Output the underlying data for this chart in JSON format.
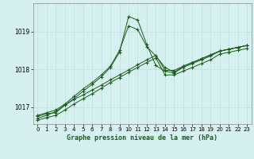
{
  "title": "Graphe pression niveau de la mer (hPa)",
  "background_color": "#d6f0f0",
  "grid_color": "#b8e0e0",
  "line_color": "#1a5c1a",
  "xlim": [
    -0.5,
    23.5
  ],
  "ylim": [
    1016.55,
    1019.75
  ],
  "yticks": [
    1017,
    1018,
    1019
  ],
  "xticks": [
    0,
    1,
    2,
    3,
    4,
    5,
    6,
    7,
    8,
    9,
    10,
    11,
    12,
    13,
    14,
    15,
    16,
    17,
    18,
    19,
    20,
    21,
    22,
    23
  ],
  "series1_x": [
    0,
    1,
    2,
    3,
    4,
    5,
    6,
    7,
    8,
    9,
    10,
    11,
    12,
    13,
    14,
    15,
    16,
    17,
    18,
    19,
    20,
    21,
    22,
    23
  ],
  "series1_y": [
    1016.75,
    1016.82,
    1016.85,
    1017.05,
    1017.2,
    1017.32,
    1017.45,
    1017.58,
    1017.72,
    1017.85,
    1017.98,
    1018.12,
    1018.25,
    1018.37,
    1017.97,
    1017.97,
    1018.08,
    1018.18,
    1018.28,
    1018.38,
    1018.48,
    1018.53,
    1018.58,
    1018.63
  ],
  "series2_x": [
    0,
    1,
    2,
    3,
    4,
    5,
    6,
    7,
    8,
    9,
    10,
    11,
    12,
    13,
    14,
    15,
    16,
    17,
    18,
    19,
    20,
    21,
    22,
    23
  ],
  "series2_y": [
    1016.78,
    1016.85,
    1016.92,
    1017.08,
    1017.28,
    1017.48,
    1017.65,
    1017.85,
    1018.08,
    1018.5,
    1019.15,
    1019.05,
    1018.6,
    1018.35,
    1018.05,
    1017.92,
    1018.08,
    1018.18,
    1018.28,
    1018.38,
    1018.48,
    1018.53,
    1018.58,
    1018.63
  ],
  "series3_x": [
    0,
    1,
    2,
    3,
    4,
    5,
    6,
    7,
    8,
    9,
    10,
    11,
    12,
    13,
    14,
    15,
    16,
    17,
    18,
    19,
    20,
    21,
    22,
    23
  ],
  "series3_y": [
    1016.7,
    1016.78,
    1016.88,
    1017.05,
    1017.22,
    1017.42,
    1017.6,
    1017.8,
    1018.05,
    1018.45,
    1019.4,
    1019.3,
    1018.65,
    1018.1,
    1017.95,
    1017.9,
    1018.05,
    1018.15,
    1018.25,
    1018.35,
    1018.48,
    1018.53,
    1018.58,
    1018.63
  ],
  "series4_x": [
    0,
    1,
    2,
    3,
    4,
    5,
    6,
    7,
    8,
    9,
    10,
    11,
    12,
    13,
    14,
    15,
    16,
    17,
    18,
    19,
    20,
    21,
    22,
    23
  ],
  "series4_y": [
    1016.65,
    1016.72,
    1016.78,
    1016.92,
    1017.08,
    1017.22,
    1017.35,
    1017.5,
    1017.65,
    1017.78,
    1017.92,
    1018.05,
    1018.18,
    1018.3,
    1017.85,
    1017.85,
    1017.95,
    1018.05,
    1018.15,
    1018.25,
    1018.4,
    1018.45,
    1018.5,
    1018.55
  ]
}
